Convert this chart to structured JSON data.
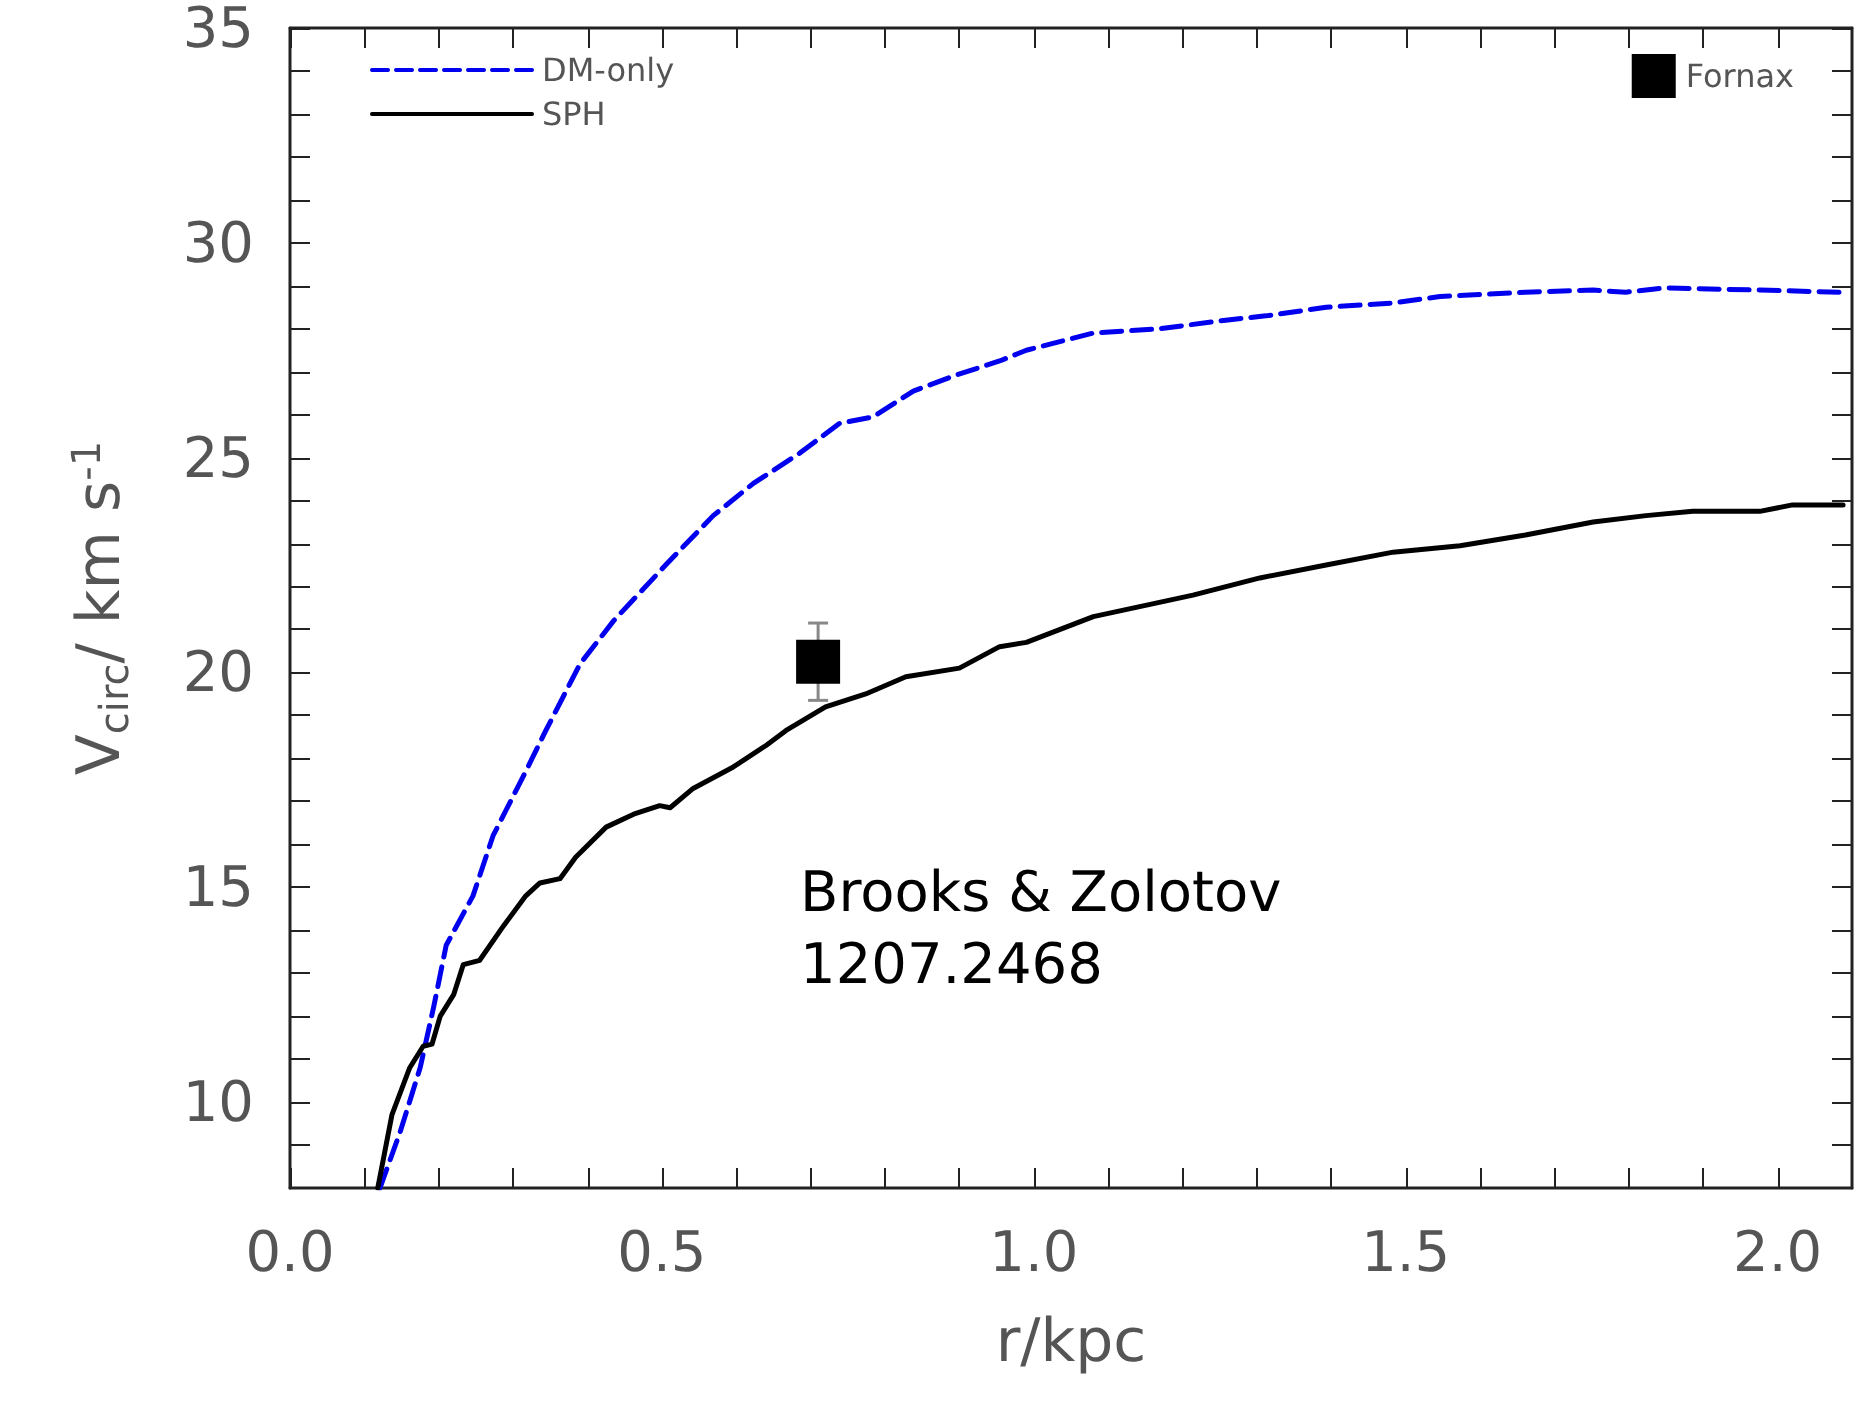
{
  "chart_data": {
    "type": "line",
    "xlabel": "r/kpc",
    "ylabel": "V$_{circ}$/ km s$^{-1}$",
    "xlim": [
      0,
      2.1
    ],
    "ylim": [
      8,
      35
    ],
    "xticks": [
      {
        "value": 0,
        "label": "0.0"
      },
      {
        "value": 0.1,
        "label": null
      },
      {
        "value": 0.2,
        "label": null
      },
      {
        "value": 0.3,
        "label": null
      },
      {
        "value": 0.4,
        "label": null
      },
      {
        "value": 0.5,
        "label": "0.5"
      },
      {
        "value": 0.6,
        "label": null
      },
      {
        "value": 0.7,
        "label": null
      },
      {
        "value": 0.8,
        "label": null
      },
      {
        "value": 0.9,
        "label": null
      },
      {
        "value": 1,
        "label": "1.0"
      },
      {
        "value": 1.1,
        "label": null
      },
      {
        "value": 1.2,
        "label": null
      },
      {
        "value": 1.3,
        "label": null
      },
      {
        "value": 1.4,
        "label": null
      },
      {
        "value": 1.5,
        "label": "1.5"
      },
      {
        "value": 1.6,
        "label": null
      },
      {
        "value": 1.7,
        "label": null
      },
      {
        "value": 1.8,
        "label": null
      },
      {
        "value": 1.9,
        "label": null
      },
      {
        "value": 2,
        "label": "2.0"
      }
    ],
    "yticks": [
      {
        "value": 9,
        "label": null
      },
      10,
      {
        "value": 11,
        "label": null
      },
      {
        "value": 12,
        "label": null
      },
      {
        "value": 13,
        "label": null
      },
      {
        "value": 14,
        "label": null
      },
      15,
      {
        "value": 16,
        "label": null
      },
      {
        "value": 17,
        "label": null
      },
      {
        "value": 18,
        "label": null
      },
      {
        "value": 19,
        "label": null
      },
      20,
      {
        "value": 21,
        "label": null
      },
      {
        "value": 22,
        "label": null
      },
      {
        "value": 23,
        "label": null
      },
      {
        "value": 24,
        "label": null
      },
      25,
      {
        "value": 26,
        "label": null
      },
      {
        "value": 27,
        "label": null
      },
      {
        "value": 28,
        "label": null
      },
      {
        "value": 29,
        "label": null
      },
      30,
      {
        "value": 31,
        "label": null
      },
      {
        "value": 32,
        "label": null
      },
      {
        "value": 33,
        "label": null
      },
      {
        "value": 34,
        "label": null
      },
      35
    ],
    "grid": false,
    "legend": "top left",
    "series": [
      {
        "name": "DM-only",
        "color": "#0000ee",
        "line_style": "dashed",
        "marker": "none",
        "x": [
          0.121,
          0.148,
          0.175,
          0.193,
          0.21,
          0.246,
          0.273,
          0.317,
          0.344,
          0.39,
          0.435,
          0.505,
          0.569,
          0.623,
          0.685,
          0.739,
          0.784,
          0.838,
          0.892,
          0.954,
          0.99,
          1.08,
          1.169,
          1.258,
          1.312,
          1.393,
          1.483,
          1.546,
          1.661,
          1.752,
          1.796,
          1.849,
          1.976,
          2.083
        ],
        "values": [
          8.0,
          9.3,
          10.8,
          12.2,
          13.65,
          14.8,
          16.2,
          17.7,
          18.65,
          20.2,
          21.2,
          22.5,
          23.65,
          24.4,
          25.1,
          25.8,
          25.95,
          26.55,
          26.9,
          27.25,
          27.5,
          27.9,
          28.0,
          28.2,
          28.3,
          28.5,
          28.6,
          28.75,
          28.85,
          28.9,
          28.85,
          28.95,
          28.9,
          28.85
        ]
      },
      {
        "name": "SPH",
        "color": "#000000",
        "line_style": "solid",
        "marker": "none",
        "x": [
          0.118,
          0.137,
          0.161,
          0.179,
          0.191,
          0.202,
          0.22,
          0.233,
          0.255,
          0.287,
          0.317,
          0.336,
          0.363,
          0.384,
          0.425,
          0.462,
          0.497,
          0.511,
          0.542,
          0.596,
          0.64,
          0.667,
          0.72,
          0.774,
          0.828,
          0.9,
          0.954,
          0.99,
          1.08,
          1.214,
          1.304,
          1.393,
          1.483,
          1.573,
          1.661,
          1.752,
          1.823,
          1.886,
          1.976,
          2.02,
          2.088
        ],
        "values": [
          8.0,
          9.7,
          10.8,
          11.3,
          11.35,
          12.0,
          12.5,
          13.2,
          13.3,
          14.1,
          14.8,
          15.1,
          15.2,
          15.7,
          16.4,
          16.7,
          16.9,
          16.85,
          17.3,
          17.8,
          18.3,
          18.65,
          19.2,
          19.5,
          19.9,
          20.1,
          20.6,
          20.7,
          21.3,
          21.8,
          22.2,
          22.5,
          22.8,
          22.95,
          23.2,
          23.5,
          23.65,
          23.75,
          23.75,
          23.9,
          23.9
        ]
      },
      {
        "name": "Fornax",
        "type": "scatter",
        "color": "#000000",
        "marker": "square",
        "x": [
          0.71
        ],
        "values": [
          20.25
        ],
        "errors": [
          0.9
        ]
      }
    ],
    "annotations": [
      "Brooks & Zolotov\n1207.2468"
    ]
  }
}
